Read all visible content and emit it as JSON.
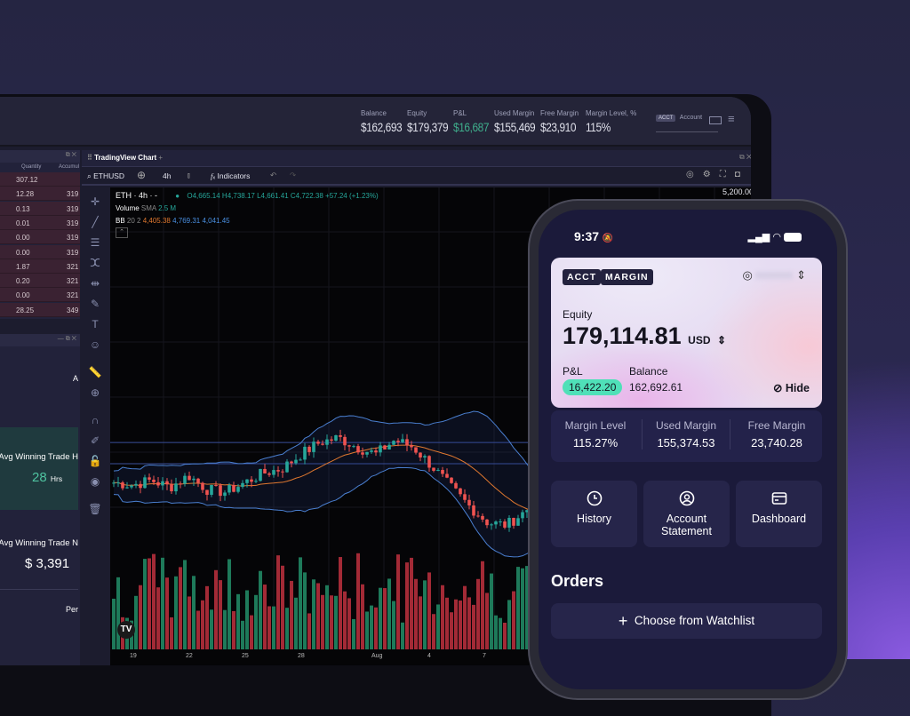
{
  "topbar": {
    "stats": [
      {
        "label": "Balance",
        "value": "$162,693"
      },
      {
        "label": "Equity",
        "value": "$179,379"
      },
      {
        "label": "P&L",
        "value": "$16,687"
      },
      {
        "label": "Used Margin",
        "value": "$155,469"
      },
      {
        "label": "Free Margin",
        "value": "$23,910"
      },
      {
        "label": "Margin Level, %",
        "value": "115%"
      }
    ],
    "account_badge": "ACCT",
    "account_label": "Account",
    "pnl_color": "#3fae8c"
  },
  "orderbook": {
    "headers": [
      "Quantity",
      "Accumul"
    ],
    "rows": [
      [
        "307.12",
        ""
      ],
      [
        "12.28",
        "319"
      ],
      [
        "0.13",
        "319"
      ],
      [
        "0.01",
        "319"
      ],
      [
        "0.00",
        "319"
      ],
      [
        "0.00",
        "319"
      ],
      [
        "1.87",
        "321"
      ],
      [
        "0.20",
        "321"
      ],
      [
        "0.00",
        "321"
      ],
      [
        "28.25",
        "349"
      ]
    ]
  },
  "stats_panel": {
    "cut_label": "A",
    "cards": [
      {
        "label": "Avg Winning Trade H",
        "value": "28",
        "unit": "Hrs"
      },
      {
        "label": "Avg Winning Trade N",
        "value": "$ 3,391"
      }
    ],
    "footer": "Per"
  },
  "chart": {
    "tab_title": "TradingView Chart",
    "symbol": "ETHUSD",
    "interval": "4h",
    "indicators_label": "Indicators",
    "legend": {
      "title": "ETH · 4h · -",
      "o": "4,665.14",
      "h": "4,738.17",
      "l": "4,661.41",
      "c": "4,722.38",
      "change": "+57.24 (+1.23%)",
      "volume_label": "Volume",
      "volume_sma": "SMA",
      "volume_value": "2.5 M",
      "bb_label": "BB",
      "bb_params": "20 2",
      "bb_basis": "4,405.38",
      "bb_upper": "4,769.31",
      "bb_lower": "4,041.45"
    },
    "price_label": "5,200.00",
    "x_labels": [
      "19",
      "22",
      "25",
      "28",
      "Aug",
      "4",
      "7"
    ],
    "colors": {
      "up": "#26a69a",
      "down": "#ef5350",
      "bb": "#4a7fd0",
      "basis": "#e0782f"
    },
    "closes": [
      4000,
      3990,
      4010,
      3980,
      4030,
      3970,
      3960,
      4000,
      4040,
      4060,
      4120,
      4170,
      4190,
      4150,
      4120,
      4180,
      4150,
      4070,
      3980,
      3900,
      3830,
      3820,
      3880,
      3960,
      4010,
      4040,
      4000,
      4050,
      4150,
      4280,
      4420,
      4500,
      4600,
      4700
    ]
  },
  "phone": {
    "time": "9:37",
    "card": {
      "tags": [
        "ACCT",
        "MARGIN"
      ],
      "equity_label": "Equity",
      "equity": "179,114.81",
      "currency": "USD",
      "pnl_label": "P&L",
      "pnl": "16,422.20",
      "balance_label": "Balance",
      "balance": "162,692.61",
      "hide_label": "Hide"
    },
    "metrics": [
      {
        "label": "Margin Level",
        "value": "115.27%"
      },
      {
        "label": "Used Margin",
        "value": "155,374.53"
      },
      {
        "label": "Free Margin",
        "value": "23,740.28"
      }
    ],
    "tiles": [
      {
        "label": "History",
        "icon": "clock-icon"
      },
      {
        "label": "Account Statement",
        "icon": "user-circle-icon"
      },
      {
        "label": "Dashboard",
        "icon": "card-icon"
      }
    ],
    "orders_title": "Orders",
    "watchlist_button": "Choose from Watchlist",
    "pnl_color": "#4fe0b8"
  }
}
